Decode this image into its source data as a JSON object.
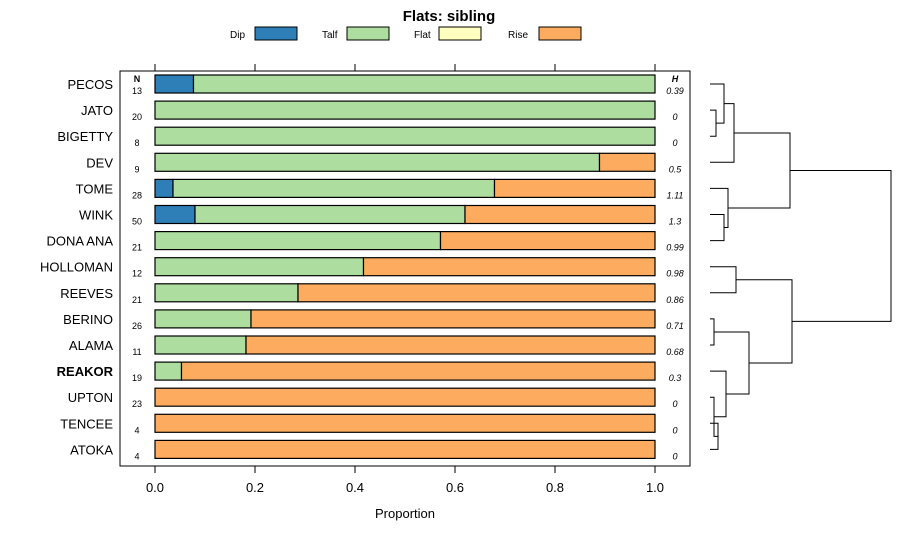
{
  "chart_data": {
    "type": "bar",
    "orientation": "horizontal-stacked-proportion",
    "title": "Flats: sibling",
    "xlabel": "Proportion",
    "xlim": [
      0,
      1
    ],
    "xticks": [
      "0.0",
      "0.2",
      "0.4",
      "0.6",
      "0.8",
      "1.0"
    ],
    "n_header": "N",
    "h_header": "H",
    "legend": [
      {
        "name": "Dip",
        "color": "#2e7fb8"
      },
      {
        "name": "Talf",
        "color": "#addd9f"
      },
      {
        "name": "Flat",
        "color": "#ffffbf"
      },
      {
        "name": "Rise",
        "color": "#fcab5f"
      }
    ],
    "categories": [
      "PECOS",
      "JATO",
      "BIGETTY",
      "DEV",
      "TOME",
      "WINK",
      "DONA ANA",
      "HOLLOMAN",
      "REEVES",
      "BERINO",
      "ALAMA",
      "REAKOR",
      "UPTON",
      "TENCEE",
      "ATOKA"
    ],
    "highlighted": "REAKOR",
    "n": [
      "13",
      "20",
      "8",
      "9",
      "28",
      "50",
      "21",
      "12",
      "21",
      "26",
      "11",
      "19",
      "23",
      "4",
      "4"
    ],
    "h": [
      "0.39",
      "0",
      "0",
      "0.5",
      "1.11",
      "1.3",
      "0.99",
      "0.98",
      "0.86",
      "0.71",
      "0.68",
      "0.3",
      "0",
      "0",
      "0"
    ],
    "series": [
      {
        "name": "Dip",
        "values": [
          0.077,
          0,
          0,
          0,
          0.036,
          0.08,
          0,
          0,
          0,
          0,
          0,
          0,
          0,
          0,
          0
        ]
      },
      {
        "name": "Talf",
        "values": [
          0.923,
          1,
          1,
          0.889,
          0.643,
          0.54,
          0.571,
          0.417,
          0.286,
          0.192,
          0.182,
          0.053,
          0,
          0,
          0
        ]
      },
      {
        "name": "Flat",
        "values": [
          0,
          0,
          0,
          0,
          0,
          0,
          0,
          0,
          0,
          0,
          0,
          0,
          0,
          0,
          0
        ]
      },
      {
        "name": "Rise",
        "values": [
          0,
          0,
          0,
          0.111,
          0.321,
          0.38,
          0.429,
          0.583,
          0.714,
          0.808,
          0.818,
          0.947,
          1,
          1,
          1
        ]
      }
    ]
  }
}
